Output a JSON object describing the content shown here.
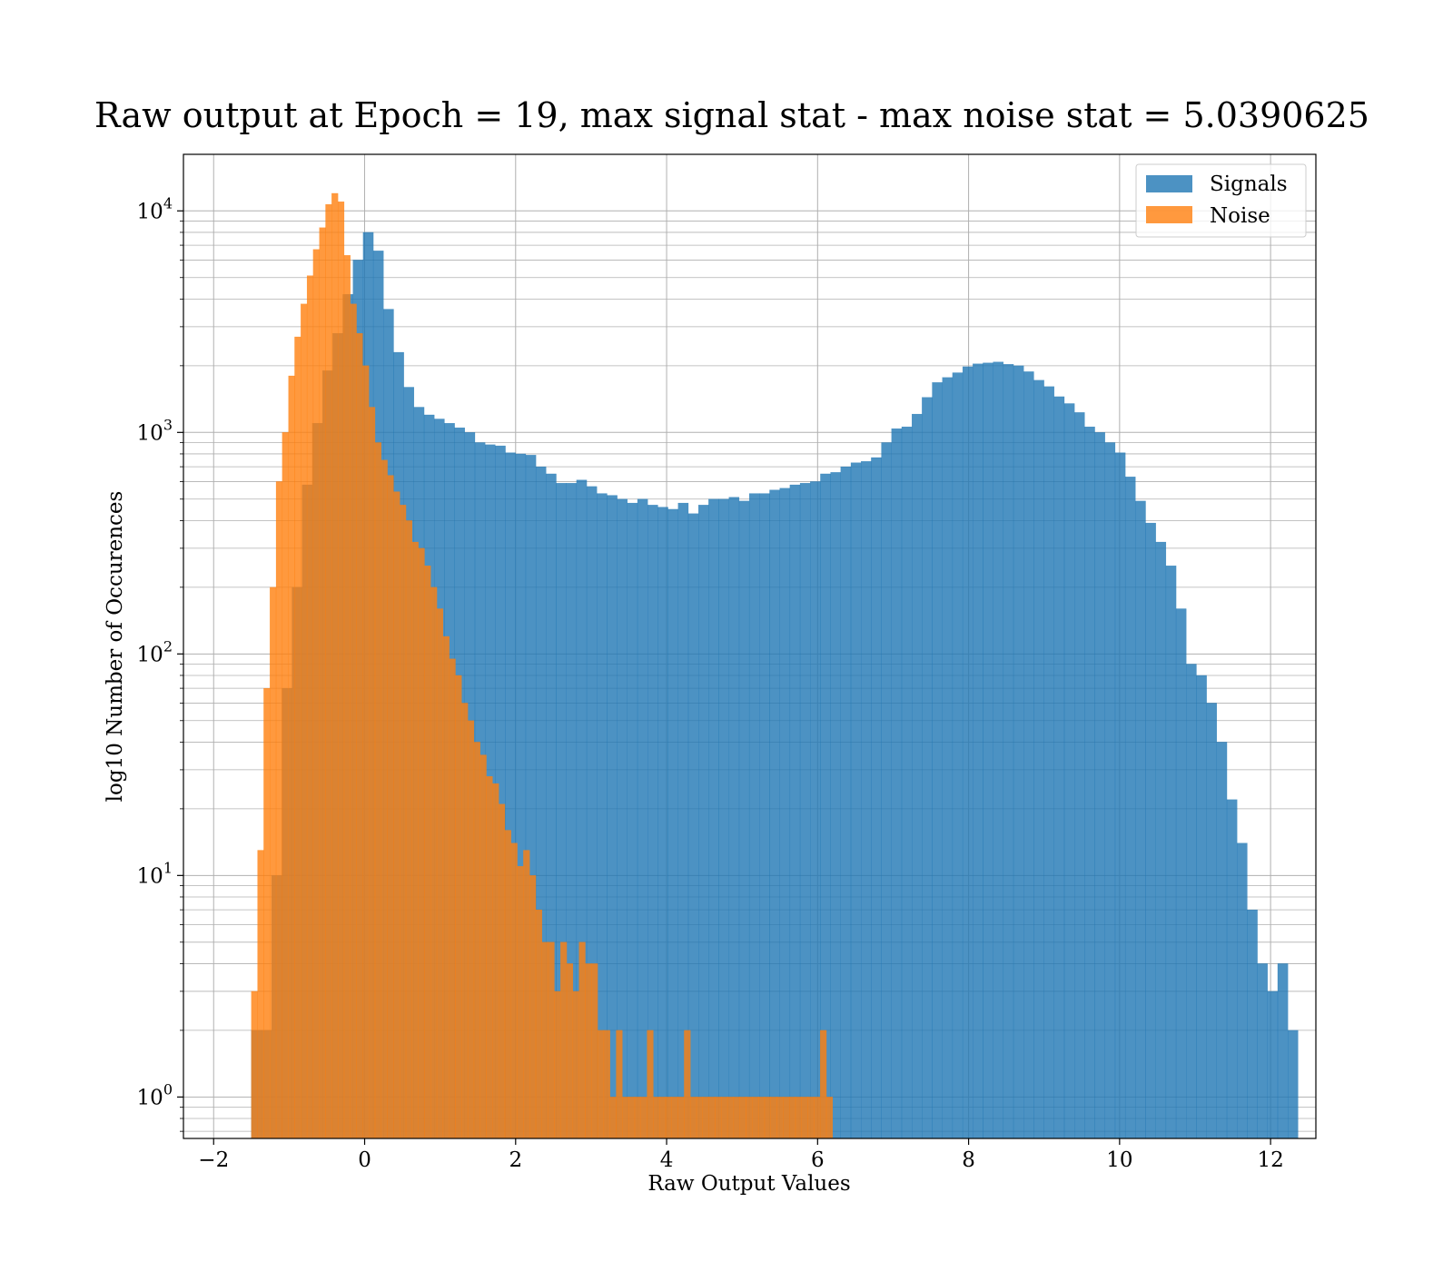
{
  "chart_data": {
    "type": "bar",
    "title": "Raw output at Epoch = 19, max signal stat - max noise stat = 5.0390625",
    "xlabel": "Raw Output Values",
    "ylabel": "log10 Number of Occurences",
    "xlim": [
      -2.4,
      12.6
    ],
    "ylim": [
      0.65,
      18000
    ],
    "yscale": "log",
    "grid": true,
    "legend_position": "top-right",
    "x_ticks": [
      -2,
      0,
      2,
      4,
      6,
      8,
      10,
      12
    ],
    "x_tick_labels": [
      "−2",
      "0",
      "2",
      "4",
      "6",
      "8",
      "10",
      "12"
    ],
    "y_ticks": [
      {
        "value": 1,
        "base": "10",
        "exp": "0"
      },
      {
        "value": 10,
        "base": "10",
        "exp": "1"
      },
      {
        "value": 100,
        "base": "10",
        "exp": "2"
      },
      {
        "value": 1000,
        "base": "10",
        "exp": "3"
      },
      {
        "value": 10000,
        "base": "10",
        "exp": "4"
      }
    ],
    "series": [
      {
        "name": "Signals",
        "color": "#1f77b4",
        "bin_start": -1.5,
        "bin_width": 0.1346,
        "counts": [
          2,
          2,
          10,
          70,
          200,
          580,
          1100,
          1900,
          2800,
          4200,
          6000,
          8000,
          6600,
          3600,
          2300,
          1600,
          1300,
          1200,
          1150,
          1100,
          1050,
          1000,
          900,
          880,
          870,
          810,
          800,
          790,
          700,
          650,
          590,
          590,
          610,
          570,
          530,
          520,
          500,
          480,
          500,
          470,
          460,
          450,
          480,
          430,
          470,
          500,
          500,
          510,
          490,
          530,
          530,
          550,
          560,
          580,
          590,
          600,
          650,
          660,
          700,
          730,
          740,
          770,
          900,
          1040,
          1060,
          1210,
          1440,
          1680,
          1770,
          1860,
          1980,
          2040,
          2060,
          2080,
          2030,
          2000,
          1880,
          1720,
          1610,
          1450,
          1350,
          1230,
          1060,
          1000,
          900,
          810,
          630,
          490,
          390,
          320,
          250,
          160,
          90,
          80,
          60,
          40,
          22,
          14,
          7,
          4,
          3,
          4,
          2
        ],
        "values_note": ""
      },
      {
        "name": "Noise",
        "color": "#ff7f0e",
        "bin_start": -1.5,
        "bin_width": 0.0819,
        "counts": [
          3,
          13,
          70,
          200,
          600,
          1000,
          1800,
          2700,
          3800,
          5100,
          6700,
          8400,
          10700,
          12000,
          11000,
          6300,
          3800,
          2800,
          2000,
          1300,
          900,
          750,
          640,
          540,
          470,
          400,
          320,
          300,
          250,
          200,
          160,
          120,
          95,
          80,
          60,
          50,
          40,
          35,
          28,
          26,
          21,
          16,
          14,
          11,
          13,
          10,
          7,
          5,
          5,
          3,
          5,
          4,
          3,
          5,
          4,
          4,
          2,
          2,
          1,
          2,
          1,
          1,
          1,
          1,
          2,
          1,
          1,
          1,
          1,
          1,
          2,
          1,
          1,
          1,
          1,
          1,
          1,
          1,
          1,
          1,
          1,
          1,
          1,
          1,
          1,
          1,
          1,
          1,
          1,
          1,
          1,
          1,
          2,
          1
        ],
        "plotted_bins": [
          -1.5,
          -1.42,
          -1.34,
          -1.26,
          -1.18,
          -1.09,
          -1.01,
          -0.93,
          -0.85,
          -0.77,
          -0.69,
          -0.61,
          -0.52,
          -0.44,
          -0.36,
          -0.28,
          -0.2,
          -0.12,
          -0.04,
          0.05,
          0.13,
          0.21,
          0.29,
          0.37,
          0.45,
          0.53,
          0.62,
          0.7,
          0.78,
          0.86,
          0.94,
          1.02,
          1.1,
          1.19,
          1.27,
          1.35,
          1.43,
          1.51,
          1.59,
          1.67,
          1.76,
          1.84,
          1.92,
          2.0,
          2.08,
          2.16,
          2.24,
          2.33,
          2.41,
          2.49,
          2.57,
          2.65,
          2.73,
          2.81,
          2.9,
          2.98,
          3.06,
          3.14,
          3.22,
          3.3,
          3.38,
          3.47,
          3.55,
          3.63,
          3.71,
          3.79,
          3.87,
          3.95,
          4.04,
          4.12,
          4.2,
          4.28,
          4.36,
          4.44,
          4.52,
          4.61,
          4.69,
          4.77,
          4.85,
          4.93,
          5.01,
          5.09,
          5.18,
          5.26,
          5.34,
          5.42,
          5.5,
          5.58,
          5.66,
          5.75,
          5.83,
          5.91,
          5.99,
          6.07
        ]
      }
    ]
  }
}
